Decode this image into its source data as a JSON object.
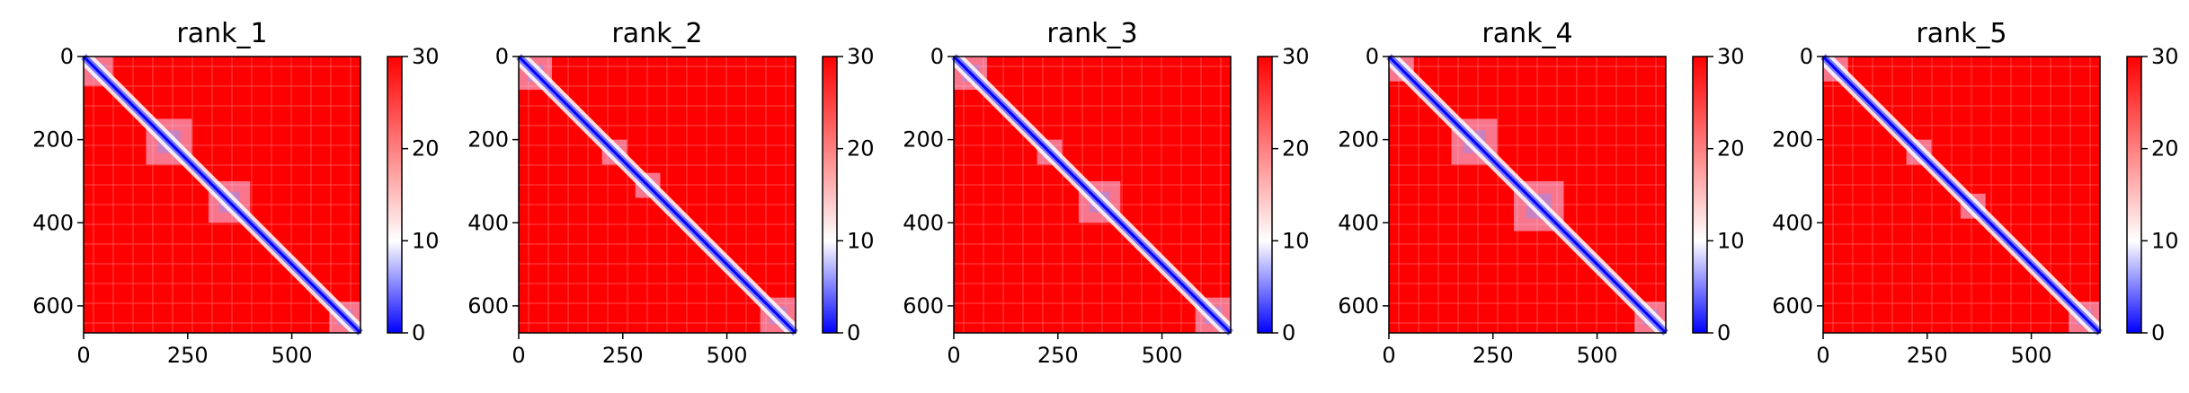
{
  "chart_data": [
    {
      "type": "heatmap",
      "title": "rank_1",
      "x_ticks": [
        0,
        250,
        500
      ],
      "y_ticks": [
        0,
        200,
        400,
        600
      ],
      "xlim": [
        0,
        665
      ],
      "ylim": [
        665,
        0
      ],
      "colorbar": {
        "range": [
          0,
          30
        ],
        "ticks": [
          0,
          10,
          20,
          30
        ],
        "colors": [
          "#0000ff",
          "#ffffff",
          "#ff0000"
        ]
      },
      "blocks": [
        [
          0,
          70
        ],
        [
          150,
          260
        ],
        [
          300,
          400
        ],
        [
          590,
          665
        ]
      ]
    },
    {
      "type": "heatmap",
      "title": "rank_2",
      "x_ticks": [
        0,
        250,
        500
      ],
      "y_ticks": [
        0,
        200,
        400,
        600
      ],
      "xlim": [
        0,
        665
      ],
      "ylim": [
        665,
        0
      ],
      "colorbar": {
        "range": [
          0,
          30
        ],
        "ticks": [
          0,
          10,
          20,
          30
        ],
        "colors": [
          "#0000ff",
          "#ffffff",
          "#ff0000"
        ]
      },
      "blocks": [
        [
          0,
          80
        ],
        [
          200,
          260
        ],
        [
          280,
          340
        ],
        [
          580,
          665
        ]
      ]
    },
    {
      "type": "heatmap",
      "title": "rank_3",
      "x_ticks": [
        0,
        250,
        500
      ],
      "y_ticks": [
        0,
        200,
        400,
        600
      ],
      "xlim": [
        0,
        665
      ],
      "ylim": [
        665,
        0
      ],
      "colorbar": {
        "range": [
          0,
          30
        ],
        "ticks": [
          0,
          10,
          20,
          30
        ],
        "colors": [
          "#0000ff",
          "#ffffff",
          "#ff0000"
        ]
      },
      "blocks": [
        [
          0,
          80
        ],
        [
          200,
          260
        ],
        [
          300,
          400
        ],
        [
          580,
          665
        ]
      ]
    },
    {
      "type": "heatmap",
      "title": "rank_4",
      "x_ticks": [
        0,
        250,
        500
      ],
      "y_ticks": [
        0,
        200,
        400,
        600
      ],
      "xlim": [
        0,
        665
      ],
      "ylim": [
        665,
        0
      ],
      "colorbar": {
        "range": [
          0,
          30
        ],
        "ticks": [
          0,
          10,
          20,
          30
        ],
        "colors": [
          "#0000ff",
          "#ffffff",
          "#ff0000"
        ]
      },
      "blocks": [
        [
          0,
          60
        ],
        [
          150,
          260
        ],
        [
          300,
          420
        ],
        [
          590,
          665
        ]
      ]
    },
    {
      "type": "heatmap",
      "title": "rank_5",
      "x_ticks": [
        0,
        250,
        500
      ],
      "y_ticks": [
        0,
        200,
        400,
        600
      ],
      "xlim": [
        0,
        665
      ],
      "ylim": [
        665,
        0
      ],
      "colorbar": {
        "range": [
          0,
          30
        ],
        "ticks": [
          0,
          10,
          20,
          30
        ],
        "colors": [
          "#0000ff",
          "#ffffff",
          "#ff0000"
        ]
      },
      "blocks": [
        [
          0,
          60
        ],
        [
          200,
          260
        ],
        [
          330,
          390
        ],
        [
          590,
          665
        ]
      ]
    }
  ]
}
